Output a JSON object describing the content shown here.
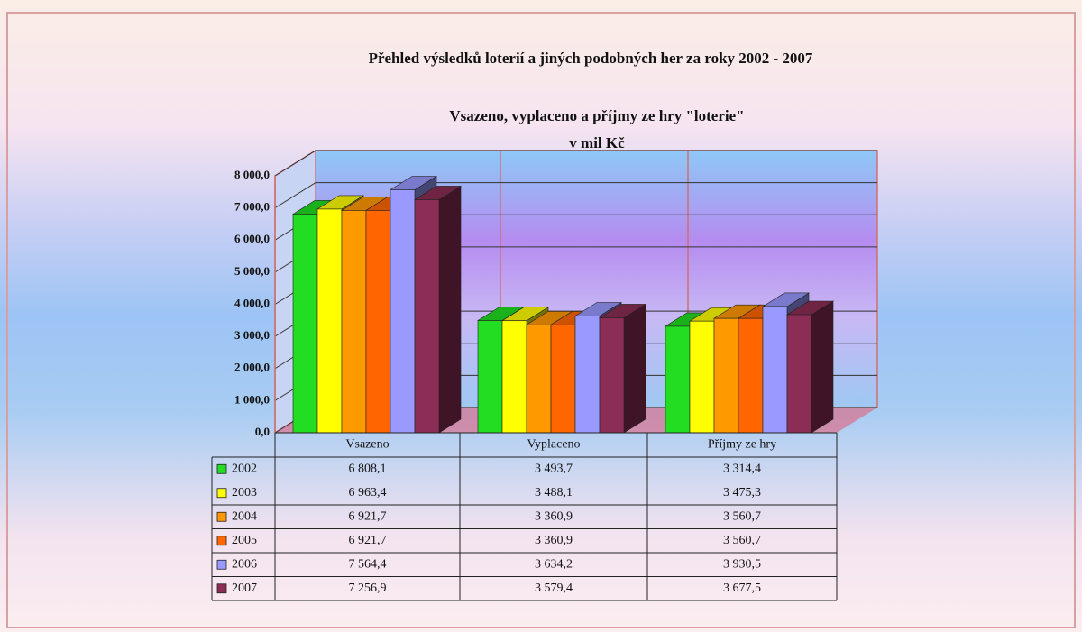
{
  "chart_data": {
    "type": "bar",
    "title": "Přehled výsledků loterií a jiných podobných her za roky 2002 - 2007",
    "subtitle": "Vsazeno, vyplaceno a příjmy ze hry \"loterie\"",
    "unit_label": "v mil Kč",
    "categories": [
      "Vsazeno",
      "Vyplaceno",
      "Příjmy ze hry"
    ],
    "series": [
      {
        "name": "2002",
        "color": "#22dd22",
        "values": [
          6808.1,
          3493.7,
          3314.4
        ],
        "value_labels": [
          "6 808,1",
          "3 493,7",
          "3 314,4"
        ]
      },
      {
        "name": "2003",
        "color": "#ffff00",
        "values": [
          6963.4,
          3488.1,
          3475.3
        ],
        "value_labels": [
          "6 963,4",
          "3 488,1",
          "3 475,3"
        ]
      },
      {
        "name": "2004",
        "color": "#ff9900",
        "values": [
          6921.7,
          3360.9,
          3560.7
        ],
        "value_labels": [
          "6 921,7",
          "3 360,9",
          "3 560,7"
        ]
      },
      {
        "name": "2005",
        "color": "#ff6600",
        "values": [
          6921.7,
          3360.9,
          3560.7
        ],
        "value_labels": [
          "6 921,7",
          "3 360,9",
          "3 560,7"
        ]
      },
      {
        "name": "2006",
        "color": "#9999ff",
        "values": [
          7564.4,
          3634.2,
          3930.5
        ],
        "value_labels": [
          "7 564,4",
          "3 634,2",
          "3 930,5"
        ]
      },
      {
        "name": "2007",
        "color": "#8b2d55",
        "values": [
          7256.9,
          3579.4,
          3677.5
        ],
        "value_labels": [
          "7 256,9",
          "3 579,4",
          "3 677,5"
        ]
      }
    ],
    "ylim": [
      0,
      8000
    ],
    "yticks": [
      {
        "value": 0,
        "label": "0,0"
      },
      {
        "value": 1000,
        "label": "1 000,0"
      },
      {
        "value": 2000,
        "label": "2 000,0"
      },
      {
        "value": 3000,
        "label": "3 000,0"
      },
      {
        "value": 4000,
        "label": "4 000,0"
      },
      {
        "value": 5000,
        "label": "5 000,0"
      },
      {
        "value": 6000,
        "label": "6 000,0"
      },
      {
        "value": 7000,
        "label": "7 000,0"
      },
      {
        "value": 8000,
        "label": "8 000,0"
      }
    ],
    "grid": true
  }
}
